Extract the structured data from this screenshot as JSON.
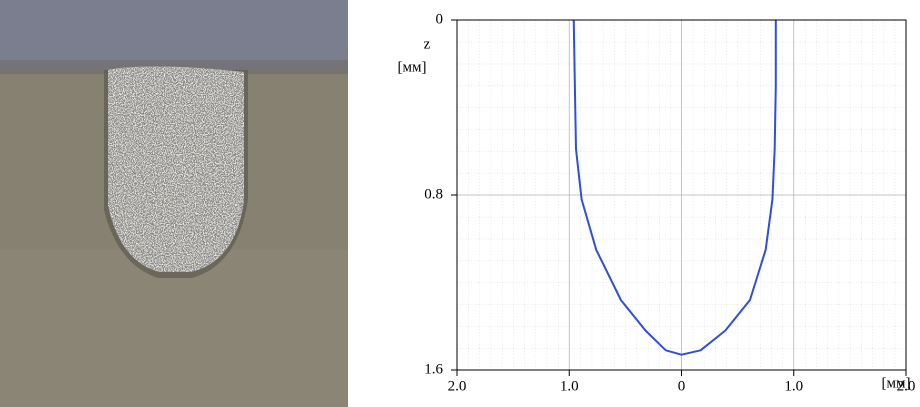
{
  "chart_data": {
    "type": "line",
    "y_label": "z",
    "y_unit": "[мм]",
    "x_unit": "[мм]",
    "xlim": [
      -2,
      2
    ],
    "xticks": [
      {
        "value": -2,
        "label": "2.0"
      },
      {
        "value": -1,
        "label": "1.0"
      },
      0,
      {
        "value": 1,
        "label": "1.0"
      },
      {
        "value": 2,
        "label": "2.0"
      }
    ],
    "ylim": [
      0,
      1.6
    ],
    "y_inverted": true,
    "yticks": [
      0,
      0.8,
      1.6
    ],
    "grid": true,
    "series": [
      {
        "color": "#2f4fd8",
        "x": [
          -0.96,
          -0.95,
          -0.94,
          -0.89,
          -0.76,
          -0.54,
          -0.32,
          -0.14,
          0,
          0.17,
          0.39,
          0.61,
          0.75,
          0.81,
          0.83,
          0.84,
          0.84
        ],
        "y": [
          0,
          0.3,
          0.59,
          0.82,
          1.05,
          1.28,
          1.42,
          1.51,
          1.53,
          1.51,
          1.42,
          1.28,
          1.05,
          0.82,
          0.59,
          0.3,
          0
        ]
      }
    ]
  }
}
